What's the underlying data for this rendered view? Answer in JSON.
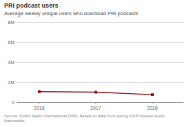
{
  "chart_data": {
    "type": "line",
    "title": "PRI podcast users",
    "subtitle": "Average weekly unique users who download PRI podcasts",
    "source": "Source: Public Radio International (PRI), based on data from spring 2018 Nielsen Audio Nationwide.",
    "x": [
      2016,
      2017,
      2018
    ],
    "values": [
      1050000,
      1000000,
      750000
    ],
    "color": "#8B1A1A",
    "marker": "square",
    "xlim": [
      2015.6,
      2018.55
    ],
    "xticks": [
      2016,
      2017,
      2018
    ],
    "ylim": [
      0,
      8000000
    ],
    "yticks": [
      {
        "value": 0,
        "label": "0"
      },
      {
        "value": 2000000,
        "label": "2M"
      },
      {
        "value": 4000000,
        "label": "4M"
      },
      {
        "value": 6000000,
        "label": "6M"
      },
      {
        "value": 8000000,
        "label": "8M"
      }
    ],
    "grid": true
  }
}
